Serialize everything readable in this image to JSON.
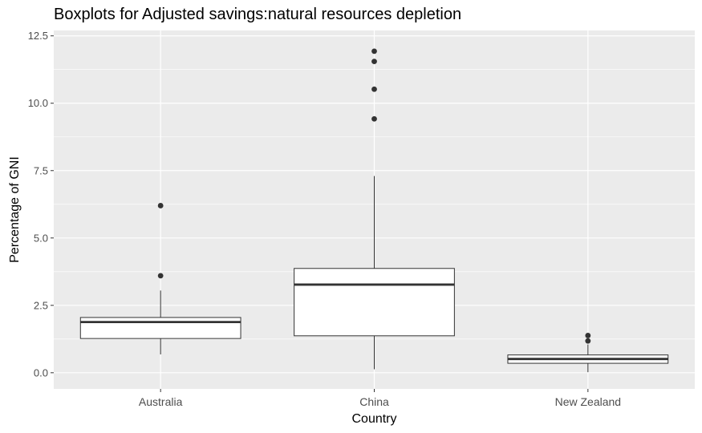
{
  "chart_data": {
    "type": "boxplot",
    "title": "Boxplots for Adjusted savings:natural resources depletion",
    "xlabel": "Country",
    "ylabel": "Percentage of GNI",
    "ylim": [
      -0.6,
      12.7
    ],
    "yticks": [
      0,
      2.5,
      5,
      7.5,
      10,
      12.5
    ],
    "ytick_labels": [
      "0.0",
      "2.5",
      "5.0",
      "7.5",
      "10.0",
      "12.5"
    ],
    "categories": [
      "Australia",
      "China",
      "New Zealand"
    ],
    "grid": true,
    "colors": {
      "panel": "#ebebeb",
      "grid": "#ffffff",
      "box_fill": "#ffffff",
      "box_line": "#333333"
    },
    "boxes": [
      {
        "category": "Australia",
        "min": 0.68,
        "q1": 1.27,
        "median": 1.88,
        "q3": 2.05,
        "max": 3.05,
        "outliers": [
          3.6,
          6.2
        ]
      },
      {
        "category": "China",
        "min": 0.13,
        "q1": 1.37,
        "median": 3.27,
        "q3": 3.87,
        "max": 7.3,
        "outliers": [
          9.42,
          10.52,
          11.55,
          11.93
        ]
      },
      {
        "category": "New Zealand",
        "min": 0.02,
        "q1": 0.35,
        "median": 0.51,
        "q3": 0.66,
        "max": 1.05,
        "outliers": [
          1.18,
          1.38
        ]
      }
    ]
  }
}
